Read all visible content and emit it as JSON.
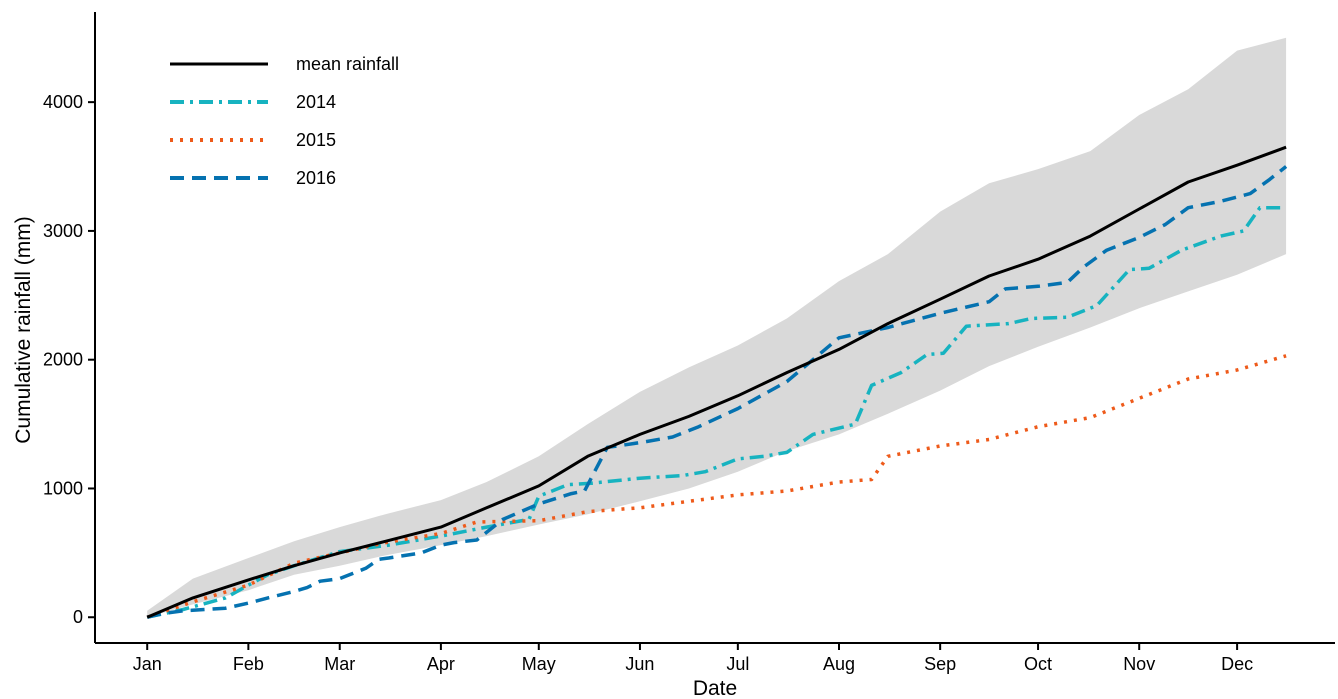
{
  "chart_data": {
    "type": "line",
    "title": "",
    "xlabel": "Date",
    "ylabel": "Cumulative rainfall (mm)",
    "x_tick_labels": [
      "Jan",
      "Feb",
      "Mar",
      "Apr",
      "May",
      "Jun",
      "Jul",
      "Aug",
      "Sep",
      "Oct",
      "Nov",
      "Dec"
    ],
    "x_ticks_day": [
      1,
      32,
      60,
      91,
      121,
      152,
      182,
      213,
      244,
      274,
      305,
      335
    ],
    "xlim_day": [
      -15,
      365
    ],
    "y_ticks": [
      0,
      1000,
      2000,
      3000,
      4000
    ],
    "ylim": [
      -200,
      4700
    ],
    "grid": false,
    "legend_position": "top-left",
    "ribbon": {
      "x_day": [
        1,
        15,
        32,
        46,
        60,
        74,
        91,
        105,
        121,
        136,
        152,
        167,
        182,
        197,
        213,
        228,
        244,
        259,
        274,
        290,
        305,
        320,
        335,
        350
      ],
      "lower": [
        0,
        100,
        210,
        330,
        400,
        480,
        560,
        630,
        720,
        800,
        900,
        1000,
        1130,
        1290,
        1420,
        1580,
        1760,
        1950,
        2100,
        2250,
        2400,
        2530,
        2660,
        2820
      ],
      "upper": [
        50,
        300,
        460,
        590,
        700,
        800,
        910,
        1050,
        1250,
        1500,
        1750,
        1940,
        2110,
        2320,
        2610,
        2820,
        3150,
        3370,
        3480,
        3620,
        3900,
        4100,
        4400,
        4500
      ]
    },
    "series": [
      {
        "name": "mean rainfall",
        "color": "#000000",
        "style": "solid",
        "x_day": [
          1,
          15,
          32,
          46,
          60,
          74,
          91,
          105,
          121,
          136,
          152,
          167,
          182,
          197,
          213,
          228,
          244,
          259,
          274,
          290,
          305,
          320,
          335,
          350
        ],
        "values": [
          0,
          150,
          290,
          400,
          500,
          590,
          700,
          850,
          1020,
          1250,
          1420,
          1560,
          1720,
          1900,
          2080,
          2280,
          2470,
          2650,
          2780,
          2960,
          3170,
          3380,
          3510,
          3650
        ]
      },
      {
        "name": "2014",
        "color": "#17b3c0",
        "style": "dot-dash",
        "x_day": [
          1,
          12,
          25,
          32,
          38,
          46,
          60,
          75,
          91,
          105,
          118,
          121,
          130,
          137,
          152,
          165,
          172,
          182,
          190,
          197,
          205,
          218,
          223,
          232,
          240,
          245,
          252,
          265,
          272,
          283,
          292,
          302,
          308,
          318,
          330,
          337,
          342,
          350
        ],
        "values": [
          0,
          60,
          150,
          250,
          330,
          400,
          510,
          560,
          630,
          700,
          760,
          940,
          1030,
          1040,
          1080,
          1100,
          1130,
          1230,
          1250,
          1280,
          1420,
          1500,
          1800,
          1900,
          2040,
          2050,
          2260,
          2280,
          2320,
          2330,
          2420,
          2700,
          2710,
          2850,
          2960,
          3000,
          3180,
          3180
        ]
      },
      {
        "name": "2015",
        "color": "#ee5a1a",
        "style": "dotted",
        "x_day": [
          1,
          15,
          32,
          46,
          60,
          74,
          91,
          102,
          121,
          136,
          152,
          167,
          182,
          197,
          213,
          223,
          228,
          244,
          259,
          274,
          290,
          305,
          320,
          335,
          350
        ],
        "values": [
          0,
          120,
          250,
          420,
          500,
          580,
          650,
          740,
          750,
          820,
          850,
          900,
          950,
          980,
          1050,
          1070,
          1250,
          1330,
          1380,
          1480,
          1550,
          1700,
          1850,
          1920,
          2030
        ]
      },
      {
        "name": "2016",
        "color": "#0572b0",
        "style": "dashed",
        "x_day": [
          1,
          6,
          12,
          25,
          32,
          38,
          46,
          50,
          54,
          60,
          68,
          72,
          75,
          85,
          91,
          95,
          102,
          110,
          121,
          131,
          135,
          142,
          145,
          153,
          162,
          170,
          182,
          197,
          213,
          228,
          244,
          259,
          264,
          274,
          283,
          288,
          295,
          305,
          313,
          320,
          330,
          339,
          345,
          350
        ],
        "values": [
          0,
          30,
          50,
          70,
          110,
          150,
          200,
          230,
          280,
          300,
          380,
          450,
          460,
          500,
          560,
          580,
          600,
          760,
          880,
          960,
          980,
          1320,
          1330,
          1360,
          1400,
          1480,
          1620,
          1830,
          2170,
          2250,
          2360,
          2450,
          2550,
          2570,
          2600,
          2720,
          2850,
          2950,
          3050,
          3180,
          3230,
          3290,
          3400,
          3500
        ]
      }
    ]
  }
}
